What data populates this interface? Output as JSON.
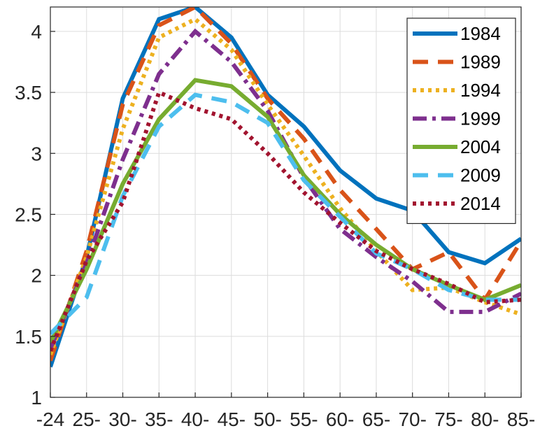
{
  "chart_data": {
    "type": "line",
    "title": "",
    "xlabel": "",
    "ylabel": "",
    "categories": [
      "-24",
      "25-",
      "30-",
      "35-",
      "40-",
      "45-",
      "50-",
      "55-",
      "60-",
      "65-",
      "70-",
      "75-",
      "80-",
      "85-"
    ],
    "ylim": [
      1,
      4.2
    ],
    "yticks": [
      1,
      1.5,
      2,
      2.5,
      3,
      3.5,
      4
    ],
    "ytick_labels": [
      "1",
      "1.5",
      "2",
      "2.5",
      "3",
      "3.5",
      "4"
    ],
    "grid": true,
    "legend_position": "top-right",
    "series": [
      {
        "name": "1984",
        "color": "#0072BD",
        "style": "solid",
        "values": [
          1.25,
          2.15,
          3.45,
          4.1,
          4.2,
          3.95,
          3.48,
          3.22,
          2.86,
          2.63,
          2.53,
          2.19,
          2.1,
          2.3
        ]
      },
      {
        "name": "1989",
        "color": "#D95319",
        "style": "dashed",
        "values": [
          1.3,
          2.2,
          3.4,
          4.05,
          4.2,
          3.9,
          3.45,
          3.12,
          2.7,
          2.38,
          2.05,
          2.19,
          1.8,
          2.28
        ]
      },
      {
        "name": "1994",
        "color": "#EDB120",
        "style": "dotted",
        "values": [
          1.35,
          2.15,
          3.2,
          3.95,
          4.1,
          3.85,
          3.4,
          2.98,
          2.55,
          2.2,
          1.88,
          1.9,
          1.78,
          1.68
        ]
      },
      {
        "name": "1999",
        "color": "#7E2F8E",
        "style": "dashdot",
        "values": [
          1.4,
          2.1,
          2.95,
          3.65,
          4.0,
          3.75,
          3.35,
          2.8,
          2.38,
          2.15,
          1.95,
          1.7,
          1.7,
          1.85
        ]
      },
      {
        "name": "2004",
        "color": "#77AC30",
        "style": "solid",
        "values": [
          1.45,
          2.05,
          2.75,
          3.28,
          3.6,
          3.55,
          3.3,
          2.82,
          2.5,
          2.25,
          2.05,
          1.92,
          1.8,
          1.92
        ]
      },
      {
        "name": "2009",
        "color": "#4DBEEE",
        "style": "dashed",
        "values": [
          1.52,
          1.82,
          2.65,
          3.22,
          3.48,
          3.42,
          3.25,
          2.78,
          2.48,
          2.18,
          2.05,
          1.88,
          1.8,
          1.8
        ]
      },
      {
        "name": "2014",
        "color": "#A2142F",
        "style": "dotted",
        "values": [
          1.38,
          2.12,
          2.6,
          3.5,
          3.37,
          3.28,
          3.0,
          2.68,
          2.43,
          2.2,
          2.05,
          1.93,
          1.78,
          1.8
        ]
      }
    ]
  }
}
